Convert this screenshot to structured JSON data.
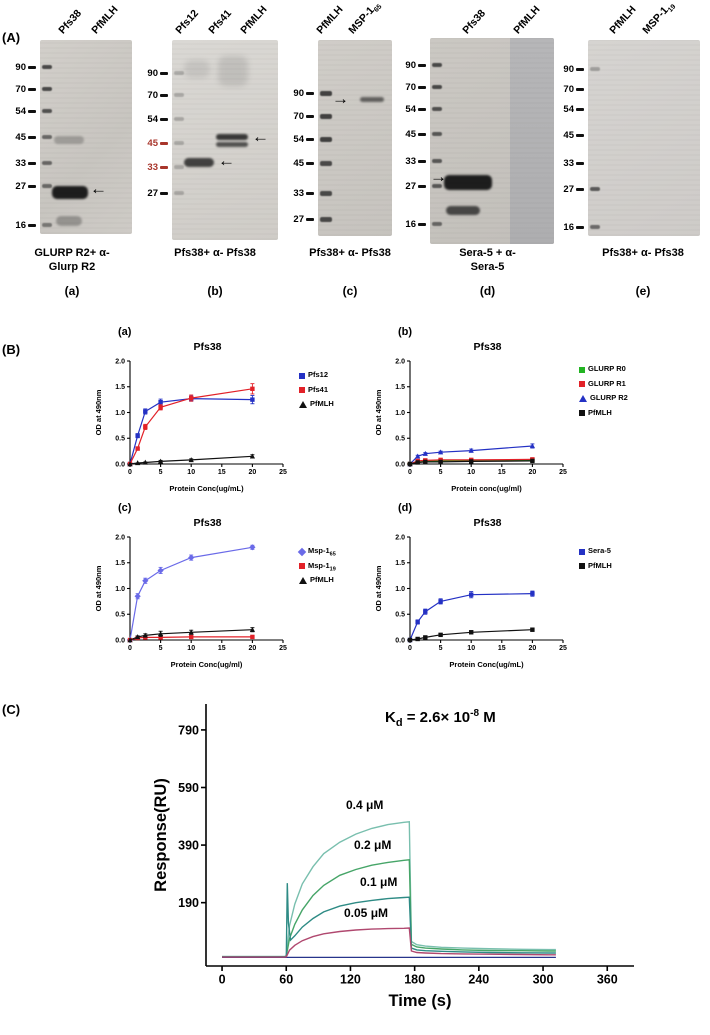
{
  "panelA": {
    "label": "(A)",
    "blots": [
      {
        "lanes": [
          {
            "main": "Pfs38",
            "sub": ""
          },
          {
            "main": "PfMLH",
            "sub": ""
          }
        ],
        "mw": [
          "90",
          "70",
          "54",
          "45",
          "33",
          "27",
          "16"
        ],
        "caption_lines": [
          "GLURP R2+ α-",
          "Glurp R2"
        ],
        "letter": "(a)"
      },
      {
        "lanes": [
          {
            "main": "Pfs12",
            "sub": ""
          },
          {
            "main": "Pfs41",
            "sub": ""
          },
          {
            "main": "PfMLH",
            "sub": ""
          }
        ],
        "mw": [
          "90",
          "70",
          "54",
          "45",
          "33",
          "27"
        ],
        "caption_lines": [
          "Pfs38+ α- Pfs38"
        ],
        "letter": "(b)"
      },
      {
        "lanes": [
          {
            "main": "PfMLH",
            "sub": ""
          },
          {
            "main": "MSP-1",
            "sub": "65"
          }
        ],
        "mw": [
          "90",
          "70",
          "54",
          "45",
          "33",
          "27"
        ],
        "caption_lines": [
          "Pfs38+ α- Pfs38"
        ],
        "letter": "(c)"
      },
      {
        "lanes": [
          {
            "main": "Pfs38",
            "sub": ""
          },
          {
            "main": "PfMLH",
            "sub": ""
          }
        ],
        "mw": [
          "90",
          "70",
          "54",
          "45",
          "33",
          "27",
          "16"
        ],
        "caption_lines": [
          "Sera-5 + α-",
          "Sera-5"
        ],
        "letter": "(d)"
      },
      {
        "lanes": [
          {
            "main": "PfMLH",
            "sub": ""
          },
          {
            "main": "MSP-1",
            "sub": "19"
          }
        ],
        "mw": [
          "90",
          "70",
          "54",
          "45",
          "33",
          "27",
          "16"
        ],
        "caption_lines": [
          "Pfs38+ α- Pfs38"
        ],
        "letter": "(e)"
      }
    ]
  },
  "panelB": {
    "label": "(B)"
  },
  "panelC": {
    "label": "(C)",
    "kd": {
      "k": "K",
      "sub": "d",
      "mid": " = 2.6× 10",
      "sup": "-8",
      "unit": " M"
    }
  },
  "icons": {
    "arrow_left": "←",
    "arrow_right": "→"
  },
  "chart_data": [
    {
      "id": "elisa-a",
      "type": "line",
      "letter": "(a)",
      "title": "Pfs38",
      "xlabel": "Protein Conc(ug/mL)",
      "ylabel": "OD at 490nm",
      "xlim": [
        0,
        25
      ],
      "ylim": [
        0,
        2
      ],
      "xticks": [
        "0",
        "5",
        "10",
        "15",
        "20",
        "25"
      ],
      "yticks": [
        "0.0",
        "0.5",
        "1.0",
        "1.5",
        "2.0"
      ],
      "x": [
        0,
        1.25,
        2.5,
        5,
        10,
        20
      ],
      "series": [
        {
          "label": "Pfs12",
          "color": "#2431c4",
          "marker": "square",
          "values": [
            0,
            0.55,
            1.02,
            1.2,
            1.27,
            1.25
          ],
          "err": [
            0,
            0.04,
            0.05,
            0.06,
            0.05,
            0.08
          ]
        },
        {
          "label": "Pfs41",
          "color": "#e22128",
          "marker": "square",
          "values": [
            0,
            0.3,
            0.72,
            1.1,
            1.28,
            1.46
          ],
          "err": [
            0,
            0.03,
            0.05,
            0.05,
            0.06,
            0.1
          ]
        },
        {
          "label": "PfMLH",
          "color": "#111111",
          "marker": "triangle",
          "values": [
            0,
            0.02,
            0.03,
            0.05,
            0.08,
            0.15
          ],
          "err": [
            0,
            0,
            0.01,
            0.02,
            0.02,
            0.03
          ]
        }
      ]
    },
    {
      "id": "elisa-b",
      "type": "line",
      "letter": "(b)",
      "title": "Pfs38",
      "xlabel": "Protein conc(ug/ml)",
      "ylabel": "OD at 490nm",
      "xlim": [
        0,
        25
      ],
      "ylim": [
        0,
        2
      ],
      "xticks": [
        "0",
        "5",
        "10",
        "15",
        "20",
        "25"
      ],
      "yticks": [
        "0.0",
        "0.5",
        "1.0",
        "1.5",
        "2.0"
      ],
      "x": [
        0,
        1.25,
        2.5,
        5,
        10,
        20
      ],
      "series": [
        {
          "label": "GLURP R0",
          "color": "#22b422",
          "marker": "square",
          "values": [
            0,
            0.05,
            0.06,
            0.06,
            0.07,
            0.08
          ],
          "err": [
            0,
            0.01,
            0.01,
            0.01,
            0.01,
            0.02
          ]
        },
        {
          "label": "GLURP R1",
          "color": "#e22128",
          "marker": "square",
          "values": [
            0,
            0.06,
            0.07,
            0.08,
            0.08,
            0.09
          ],
          "err": [
            0,
            0.01,
            0.01,
            0.01,
            0.01,
            0.02
          ]
        },
        {
          "label": "GLURP R2",
          "color": "#2431c4",
          "marker": "triangle",
          "values": [
            0,
            0.15,
            0.2,
            0.23,
            0.26,
            0.35
          ],
          "err": [
            0,
            0.02,
            0.02,
            0.02,
            0.03,
            0.04
          ]
        },
        {
          "label": "PfMLH",
          "color": "#111111",
          "marker": "square",
          "values": [
            0,
            0.03,
            0.04,
            0.04,
            0.05,
            0.06
          ],
          "err": [
            0,
            0.01,
            0.01,
            0.01,
            0.01,
            0.01
          ]
        }
      ]
    },
    {
      "id": "elisa-c",
      "type": "line",
      "letter": "(c)",
      "title": "Pfs38",
      "xlabel": "Protein Conc(ug/ml)",
      "ylabel": "OD at 490nm",
      "xlim": [
        0,
        25
      ],
      "ylim": [
        0,
        2
      ],
      "xticks": [
        "0",
        "5",
        "10",
        "15",
        "20",
        "25"
      ],
      "yticks": [
        "0.0",
        "0.5",
        "1.0",
        "1.5",
        "2.0"
      ],
      "x": [
        0,
        1.25,
        2.5,
        5,
        10,
        20
      ],
      "series": [
        {
          "label": "Msp-1",
          "label_sub": "65",
          "color": "#6a6ae8",
          "marker": "diamond",
          "values": [
            0,
            0.85,
            1.15,
            1.35,
            1.6,
            1.8
          ],
          "err": [
            0,
            0.05,
            0.05,
            0.06,
            0.05,
            0.04
          ]
        },
        {
          "label": "Msp-1",
          "label_sub": "19",
          "color": "#e22128",
          "marker": "square",
          "values": [
            0,
            0.04,
            0.05,
            0.05,
            0.06,
            0.06
          ],
          "err": [
            0,
            0.01,
            0.01,
            0.01,
            0.01,
            0.01
          ]
        },
        {
          "label": "PfMLH",
          "color": "#111111",
          "marker": "triangle",
          "values": [
            0,
            0.06,
            0.09,
            0.12,
            0.15,
            0.2
          ],
          "err": [
            0,
            0.02,
            0.03,
            0.05,
            0.04,
            0.04
          ]
        }
      ]
    },
    {
      "id": "elisa-d",
      "type": "line",
      "letter": "(d)",
      "title": "Pfs38",
      "xlabel": "Protein Conc(ug/mL)",
      "ylabel": "OD at 490nm",
      "xlim": [
        0,
        25
      ],
      "ylim": [
        0,
        2
      ],
      "xticks": [
        "0",
        "5",
        "10",
        "15",
        "20",
        "25"
      ],
      "yticks": [
        "0.0",
        "0.5",
        "1.0",
        "1.5",
        "2.0"
      ],
      "x": [
        0,
        1.25,
        2.5,
        5,
        10,
        20
      ],
      "series": [
        {
          "label": "Sera-5",
          "color": "#2431c4",
          "marker": "square",
          "values": [
            0,
            0.35,
            0.55,
            0.75,
            0.88,
            0.9
          ],
          "err": [
            0,
            0.04,
            0.05,
            0.05,
            0.06,
            0.05
          ]
        },
        {
          "label": "PfMLH",
          "color": "#111111",
          "marker": "square",
          "values": [
            0,
            0.02,
            0.05,
            0.1,
            0.15,
            0.2
          ],
          "err": [
            0,
            0.01,
            0.01,
            0.02,
            0.03,
            0.03
          ]
        }
      ]
    },
    {
      "id": "spr",
      "type": "line",
      "title": "",
      "xlabel": "Time (s)",
      "ylabel": "Response(RU)",
      "xlim": [
        -15,
        385
      ],
      "ylim": [
        -30,
        880
      ],
      "xticks": [
        "0",
        "60",
        "120",
        "180",
        "240",
        "300",
        "360"
      ],
      "yticks": [
        "190",
        "390",
        "590",
        "790"
      ],
      "kd_value": "2.6× 10-8 M",
      "series": [
        {
          "label": "",
          "color": "#27348b",
          "width": 1.2,
          "points": [
            [
              0,
              0
            ],
            [
              312,
              0
            ]
          ]
        },
        {
          "label": "0.4 μM",
          "color": "#79bfae",
          "width": 1.4,
          "points": [
            [
              0,
              3
            ],
            [
              58,
              3
            ],
            [
              60,
              5
            ],
            [
              63,
              110
            ],
            [
              68,
              185
            ],
            [
              75,
              255
            ],
            [
              85,
              315
            ],
            [
              95,
              360
            ],
            [
              110,
              400
            ],
            [
              125,
              428
            ],
            [
              140,
              448
            ],
            [
              155,
              461
            ],
            [
              170,
              469
            ],
            [
              175,
              471
            ],
            [
              177,
              55
            ],
            [
              182,
              44
            ],
            [
              190,
              39
            ],
            [
              205,
              35
            ],
            [
              225,
              32
            ],
            [
              250,
              30
            ],
            [
              280,
              28
            ],
            [
              305,
              27
            ],
            [
              312,
              27
            ]
          ]
        },
        {
          "label": "0.2 μM",
          "color": "#46a568",
          "width": 1.4,
          "points": [
            [
              0,
              2
            ],
            [
              58,
              2
            ],
            [
              60,
              4
            ],
            [
              63,
              65
            ],
            [
              68,
              115
            ],
            [
              75,
              165
            ],
            [
              85,
              215
            ],
            [
              95,
              250
            ],
            [
              110,
              285
            ],
            [
              125,
              305
            ],
            [
              140,
              320
            ],
            [
              155,
              330
            ],
            [
              170,
              337
            ],
            [
              175,
              339
            ],
            [
              177,
              45
            ],
            [
              182,
              36
            ],
            [
              190,
              32
            ],
            [
              205,
              29
            ],
            [
              225,
              26
            ],
            [
              250,
              24
            ],
            [
              280,
              23
            ],
            [
              305,
              22
            ],
            [
              312,
              22
            ]
          ]
        },
        {
          "label": "0.1 μM",
          "color": "#2e8b85",
          "width": 1.4,
          "points": [
            [
              0,
              2
            ],
            [
              58,
              2
            ],
            [
              60,
              3
            ],
            [
              61,
              258
            ],
            [
              62,
              120
            ],
            [
              64,
              60
            ],
            [
              68,
              75
            ],
            [
              75,
              105
            ],
            [
              85,
              135
            ],
            [
              95,
              158
            ],
            [
              110,
              178
            ],
            [
              125,
              190
            ],
            [
              140,
              198
            ],
            [
              155,
              204
            ],
            [
              170,
              208
            ],
            [
              175,
              209
            ],
            [
              177,
              32
            ],
            [
              182,
              26
            ],
            [
              190,
              23
            ],
            [
              205,
              21
            ],
            [
              225,
              19
            ],
            [
              250,
              17
            ],
            [
              280,
              16
            ],
            [
              305,
              15
            ],
            [
              312,
              15
            ]
          ]
        },
        {
          "label": "0.05 μM",
          "color": "#b0486f",
          "width": 1.4,
          "points": [
            [
              0,
              1
            ],
            [
              58,
              1
            ],
            [
              60,
              2
            ],
            [
              63,
              25
            ],
            [
              68,
              42
            ],
            [
              75,
              58
            ],
            [
              85,
              72
            ],
            [
              95,
              82
            ],
            [
              110,
              90
            ],
            [
              125,
              95
            ],
            [
              140,
              98
            ],
            [
              155,
              100
            ],
            [
              170,
              101
            ],
            [
              175,
              102
            ],
            [
              177,
              22
            ],
            [
              182,
              17
            ],
            [
              190,
              15
            ],
            [
              205,
              13
            ],
            [
              225,
              12
            ],
            [
              250,
              11
            ],
            [
              280,
              10
            ],
            [
              305,
              9
            ],
            [
              312,
              9
            ]
          ]
        }
      ]
    }
  ]
}
